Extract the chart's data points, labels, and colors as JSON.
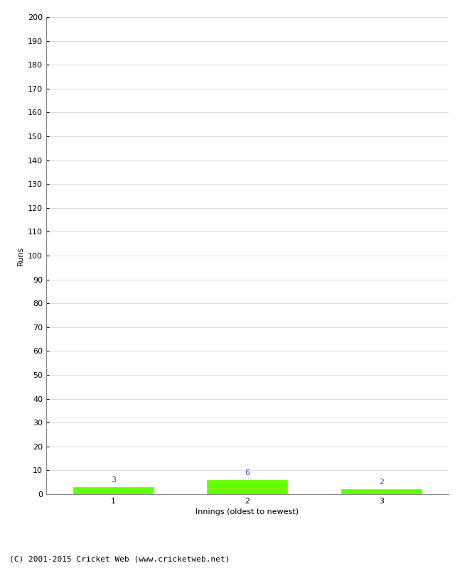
{
  "categories": [
    1,
    2,
    3
  ],
  "values": [
    3,
    6,
    2
  ],
  "bar_color": "#66ff00",
  "bar_edge_color": "#66ff00",
  "xlabel": "Innings (oldest to newest)",
  "ylabel": "Runs",
  "ylim": [
    0,
    200
  ],
  "yticks": [
    0,
    10,
    20,
    30,
    40,
    50,
    60,
    70,
    80,
    90,
    100,
    110,
    120,
    130,
    140,
    150,
    160,
    170,
    180,
    190,
    200
  ],
  "label_color": "#4444cc",
  "label_fontsize": 8,
  "tick_fontsize": 8,
  "axis_label_fontsize": 8,
  "footer": "(C) 2001-2015 Cricket Web (www.cricketweb.net)",
  "footer_fontsize": 8,
  "background_color": "#ffffff",
  "grid_color": "#cccccc",
  "bar_width": 0.6
}
